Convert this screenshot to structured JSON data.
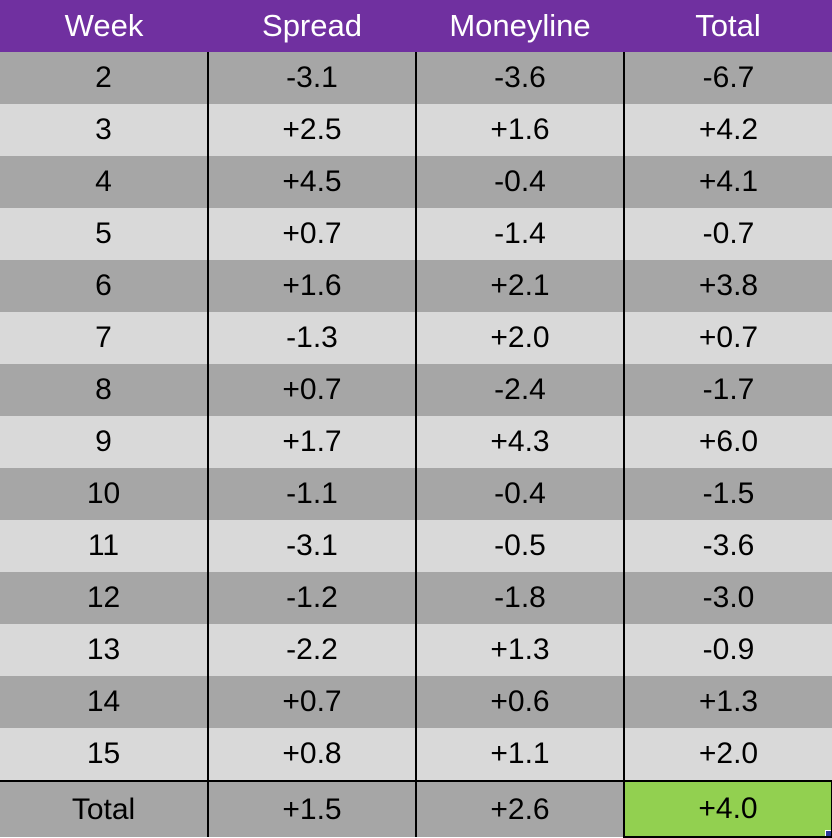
{
  "table": {
    "headers": [
      "Week",
      "Spread",
      "Moneyline",
      "Total"
    ],
    "rows": [
      [
        "2",
        "-3.1",
        "-3.6",
        "-6.7"
      ],
      [
        "3",
        "+2.5",
        "+1.6",
        "+4.2"
      ],
      [
        "4",
        "+4.5",
        "-0.4",
        "+4.1"
      ],
      [
        "5",
        "+0.7",
        "-1.4",
        "-0.7"
      ],
      [
        "6",
        "+1.6",
        "+2.1",
        "+3.8"
      ],
      [
        "7",
        "-1.3",
        "+2.0",
        "+0.7"
      ],
      [
        "8",
        "+0.7",
        "-2.4",
        "-1.7"
      ],
      [
        "9",
        "+1.7",
        "+4.3",
        "+6.0"
      ],
      [
        "10",
        "-1.1",
        "-0.4",
        "-1.5"
      ],
      [
        "11",
        "-3.1",
        "-0.5",
        "-3.6"
      ],
      [
        "12",
        "-1.2",
        "-1.8",
        "-3.0"
      ],
      [
        "13",
        "-2.2",
        "+1.3",
        "-0.9"
      ],
      [
        "14",
        "+0.7",
        "+0.6",
        "+1.3"
      ],
      [
        "15",
        "+0.8",
        "+1.1",
        "+2.0"
      ]
    ],
    "total_row": [
      "Total",
      "+1.5",
      "+2.6",
      "+4.0"
    ]
  },
  "colors": {
    "header_bg": "#7030a0",
    "header_text": "#ffffff",
    "row_dark": "#a6a6a6",
    "row_light": "#d9d9d9",
    "selected_cell": "#92d050"
  }
}
